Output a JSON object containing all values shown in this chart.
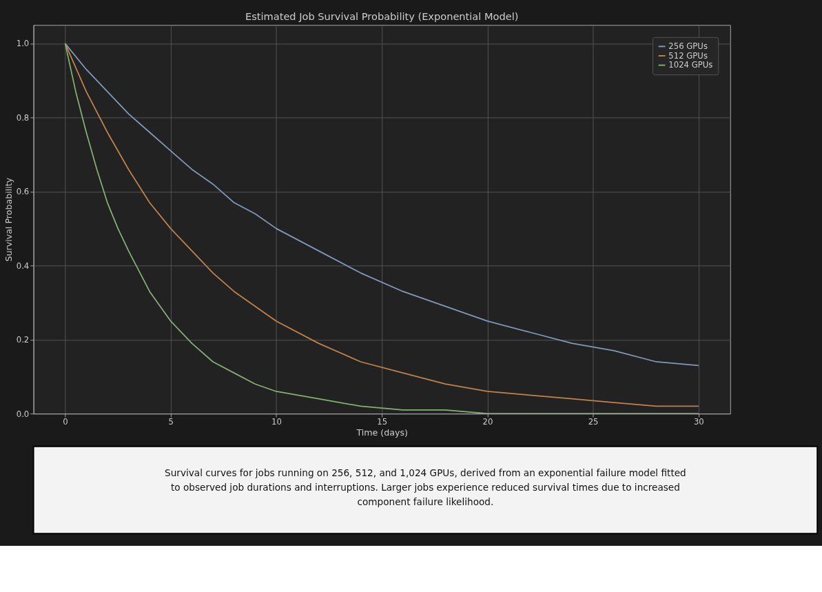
{
  "chart_data": {
    "type": "line",
    "title": "Estimated Job Survival Probability (Exponential Model)",
    "xlabel": "Time (days)",
    "ylabel": "Survival Probability",
    "xlim": [
      -1.5,
      31.5
    ],
    "ylim": [
      0,
      1.05
    ],
    "xticks": [
      0,
      5,
      10,
      15,
      20,
      25,
      30
    ],
    "yticks": [
      {
        "value": 0,
        "label": "0.0"
      },
      0.2,
      0.4,
      0.6,
      0.8,
      {
        "value": 1,
        "label": "1.0"
      }
    ],
    "grid": true,
    "legend": "top right",
    "line_style": "solid",
    "series": [
      {
        "name": "256 GPUs",
        "color": "#7f9bbb",
        "x": [
          0,
          1,
          2,
          3,
          4,
          5,
          6,
          7,
          8,
          9,
          10,
          12,
          14,
          16,
          18,
          20,
          22,
          24,
          26,
          28,
          30
        ],
        "values": [
          1,
          0.93,
          0.87,
          0.81,
          0.76,
          0.71,
          0.66,
          0.62,
          0.57,
          0.54,
          0.5,
          0.44,
          0.38,
          0.33,
          0.29,
          0.25,
          0.22,
          0.19,
          0.17,
          0.14,
          0.13
        ]
      },
      {
        "name": "512 GPUs",
        "color": "#c1834b",
        "x": [
          0,
          1,
          2,
          3,
          4,
          5,
          6,
          7,
          8,
          9,
          10,
          12,
          14,
          16,
          18,
          20,
          22,
          24,
          26,
          28,
          30
        ],
        "values": [
          1,
          0.87,
          0.76,
          0.66,
          0.57,
          0.5,
          0.44,
          0.38,
          0.33,
          0.29,
          0.25,
          0.19,
          0.14,
          0.11,
          0.08,
          0.06,
          0.05,
          0.04,
          0.03,
          0.02,
          0.02
        ]
      },
      {
        "name": "1024 GPUs",
        "color": "#82b272",
        "x": [
          0,
          0.5,
          1,
          1.5,
          2,
          2.5,
          3,
          4,
          5,
          6,
          7,
          8,
          9,
          10,
          12,
          14,
          16,
          18,
          20,
          25,
          30
        ],
        "values": [
          1,
          0.87,
          0.76,
          0.66,
          0.57,
          0.5,
          0.44,
          0.33,
          0.25,
          0.19,
          0.14,
          0.11,
          0.08,
          0.06,
          0.04,
          0.02,
          0.01,
          0.01,
          0.0,
          0.0,
          0.0
        ]
      }
    ],
    "annotations": [
      "Survival curves for jobs running on 256, 512, and 1,024 GPUs, derived from an exponential failure model fitted to observed job durations and interruptions. Larger jobs experience reduced survival times due to increased component failure likelihood."
    ]
  }
}
